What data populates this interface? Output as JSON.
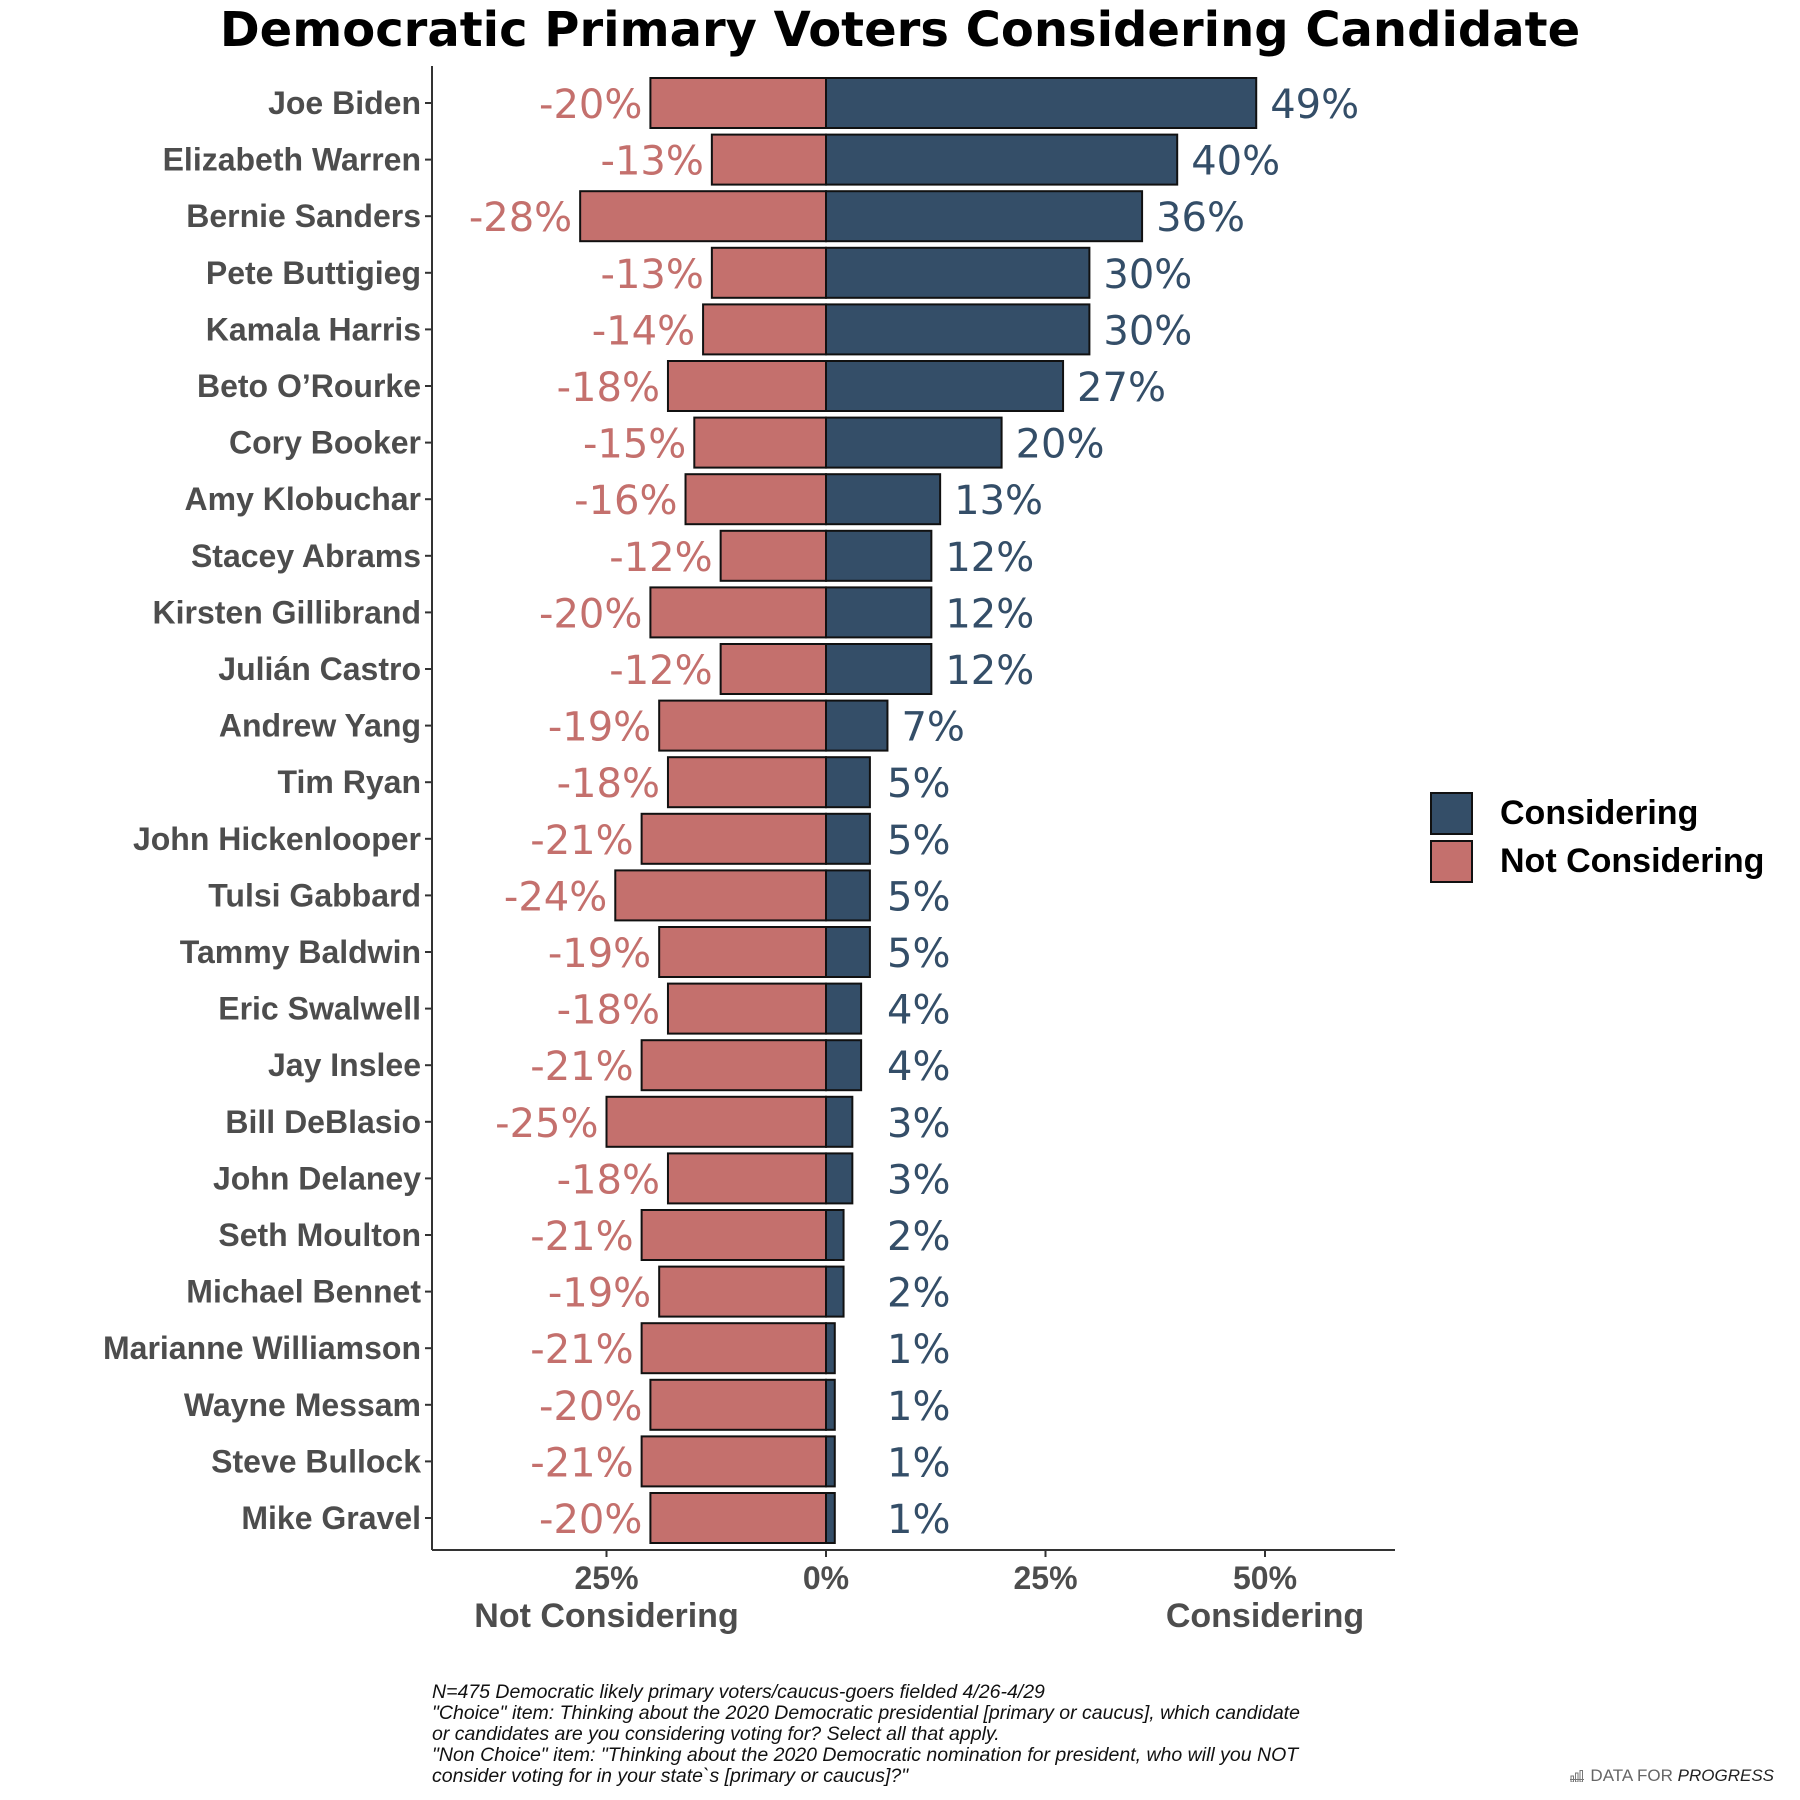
{
  "chart_data": {
    "type": "bar",
    "title": "Democratic Primary Voters Considering Candidate",
    "categories": [
      "Joe Biden",
      "Elizabeth Warren",
      "Bernie Sanders",
      "Pete Buttigieg",
      "Kamala Harris",
      "Beto O’Rourke",
      "Cory Booker",
      "Amy Klobuchar",
      "Stacey Abrams",
      "Kirsten Gillibrand",
      "Julián Castro",
      "Andrew Yang",
      "Tim Ryan",
      "John Hickenlooper",
      "Tulsi Gabbard",
      "Tammy Baldwin",
      "Eric Swalwell",
      "Jay Inslee",
      "Bill DeBlasio",
      "John Delaney",
      "Seth Moulton",
      "Michael Bennet",
      "Marianne Williamson",
      "Wayne Messam",
      "Steve Bullock",
      "Mike Gravel"
    ],
    "series": [
      {
        "name": "Considering",
        "color": "#344e68",
        "values": [
          49,
          40,
          36,
          30,
          30,
          27,
          20,
          13,
          12,
          12,
          12,
          7,
          5,
          5,
          5,
          5,
          4,
          4,
          3,
          3,
          2,
          2,
          1,
          1,
          1,
          1
        ],
        "labels": [
          "49%",
          "40%",
          "36%",
          "30%",
          "30%",
          "27%",
          "20%",
          "13%",
          "12%",
          "12%",
          "12%",
          "7%",
          "5%",
          "5%",
          "5%",
          "5%",
          "4%",
          "4%",
          "3%",
          "3%",
          "2%",
          "2%",
          "1%",
          "1%",
          "1%",
          "1%"
        ]
      },
      {
        "name": "Not Considering",
        "color": "#c4706d",
        "values": [
          -20,
          -13,
          -28,
          -13,
          -14,
          -18,
          -15,
          -16,
          -12,
          -20,
          -12,
          -19,
          -18,
          -21,
          -24,
          -19,
          -18,
          -21,
          -25,
          -18,
          -21,
          -19,
          -21,
          -20,
          -21,
          -20
        ],
        "labels": [
          "-20%",
          "-13%",
          "-28%",
          "-13%",
          "-14%",
          "-18%",
          "-15%",
          "-16%",
          "-12%",
          "-20%",
          "-12%",
          "-19%",
          "-18%",
          "-21%",
          "-24%",
          "-19%",
          "-18%",
          "-21%",
          "-25%",
          "-18%",
          "-21%",
          "-19%",
          "-21%",
          "-20%",
          "-21%",
          "-20%"
        ]
      }
    ],
    "xlim": [
      -45,
      65
    ],
    "x_ticks": [
      {
        "value": -25,
        "label": "25%"
      },
      {
        "value": 0,
        "label": "0%"
      },
      {
        "value": 25,
        "label": "25%"
      },
      {
        "value": 50,
        "label": "50%"
      }
    ],
    "x_sublabels": [
      {
        "value": -25,
        "label": "Not Considering"
      },
      {
        "value": 50,
        "label": "Considering"
      }
    ],
    "legend_position": "right",
    "grid": false
  },
  "legend": {
    "items": [
      {
        "label": "Considering",
        "color": "#344e68"
      },
      {
        "label": "Not Considering",
        "color": "#c4706d"
      }
    ]
  },
  "footnote": {
    "lines": [
      "N=475 Democratic likely primary voters/caucus-goers fielded 4/26-4/29",
      "\"Choice\" item: Thinking about the 2020 Democratic presidential [primary or caucus], which candidate",
      "or candidates are you considering voting for? Select all that apply.",
      "\"Non Choice\" item: \"Thinking about the 2020 Democratic nomination for president, who will you NOT",
      "consider voting for in your state`s [primary or caucus]?\""
    ]
  },
  "brand": {
    "prefix": "DATA FOR ",
    "emphasis": "PROGRESS"
  }
}
